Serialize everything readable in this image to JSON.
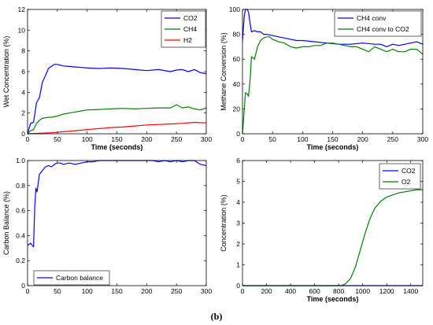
{
  "figure": {
    "caption": "(b)"
  },
  "chart_data": [
    {
      "type": "line",
      "xlabel": "Time (seconds)",
      "ylabel": "Wet Concentration (%)",
      "xlim": [
        0,
        300
      ],
      "ylim": [
        0,
        12
      ],
      "xticks": [
        "0",
        "50",
        "100",
        "150",
        "200",
        "250",
        "300"
      ],
      "yticks": [
        "0",
        "2",
        "4",
        "6",
        "8",
        "10",
        "12"
      ],
      "legend_position": "top-right",
      "series": [
        {
          "name": "CO2",
          "color": "#0000ff",
          "x": [
            0,
            5,
            10,
            15,
            20,
            25,
            30,
            35,
            40,
            45,
            50,
            60,
            70,
            80,
            90,
            100,
            120,
            140,
            160,
            180,
            200,
            220,
            240,
            250,
            260,
            270,
            280,
            290,
            300
          ],
          "y": [
            0,
            1.0,
            1.1,
            3.0,
            3.5,
            5.0,
            5.6,
            6.3,
            6.5,
            6.7,
            6.7,
            6.55,
            6.5,
            6.45,
            6.4,
            6.35,
            6.3,
            6.35,
            6.3,
            6.2,
            6.1,
            6.2,
            6.0,
            6.15,
            6.2,
            6.0,
            6.2,
            5.9,
            5.8
          ]
        },
        {
          "name": "CH4",
          "color": "#008000",
          "x": [
            0,
            5,
            10,
            15,
            20,
            25,
            30,
            40,
            50,
            60,
            70,
            80,
            90,
            100,
            120,
            140,
            160,
            180,
            200,
            220,
            240,
            250,
            260,
            270,
            280,
            290,
            300
          ],
          "y": [
            0,
            0.3,
            0.4,
            1.0,
            1.3,
            1.5,
            1.55,
            1.6,
            1.7,
            1.9,
            2.0,
            2.1,
            2.2,
            2.3,
            2.35,
            2.4,
            2.45,
            2.4,
            2.45,
            2.5,
            2.5,
            2.8,
            2.5,
            2.6,
            2.4,
            2.3,
            2.5
          ]
        },
        {
          "name": "H2",
          "color": "#ff0000",
          "x": [
            0,
            20,
            40,
            60,
            80,
            100,
            120,
            140,
            160,
            180,
            200,
            220,
            240,
            260,
            280,
            300
          ],
          "y": [
            0,
            0.05,
            0.1,
            0.2,
            0.3,
            0.4,
            0.5,
            0.6,
            0.65,
            0.75,
            0.85,
            0.9,
            0.95,
            1.0,
            1.1,
            1.05
          ]
        }
      ]
    },
    {
      "type": "line",
      "xlabel": "Time (seconds)",
      "ylabel": "Methane Conversion (%)",
      "xlim": [
        0,
        300
      ],
      "ylim": [
        0,
        100
      ],
      "xticks": [
        "0",
        "50",
        "100",
        "150",
        "200",
        "250",
        "300"
      ],
      "yticks": [
        "0",
        "20",
        "40",
        "60",
        "80",
        "100"
      ],
      "legend_position": "top-right",
      "series": [
        {
          "name": "CH4 conv",
          "color": "#0000ff",
          "x": [
            0,
            3,
            5,
            8,
            10,
            13,
            15,
            20,
            25,
            30,
            35,
            40,
            50,
            60,
            70,
            80,
            90,
            100,
            120,
            140,
            160,
            180,
            200,
            220,
            230,
            240,
            250,
            260,
            270,
            280,
            290,
            300
          ],
          "y": [
            75,
            95,
            100,
            100,
            98,
            88,
            82,
            83,
            82,
            82,
            80,
            80,
            79,
            78,
            77,
            76,
            75,
            75,
            74,
            73,
            72,
            72,
            73,
            72,
            72,
            70,
            72,
            71,
            72,
            73,
            74,
            72
          ]
        },
        {
          "name": "CH4 conv to CO2",
          "color": "#008000",
          "x": [
            0,
            5,
            8,
            10,
            13,
            15,
            20,
            25,
            30,
            35,
            40,
            45,
            50,
            60,
            70,
            80,
            90,
            100,
            110,
            120,
            130,
            140,
            150,
            160,
            170,
            180,
            190,
            200,
            210,
            220,
            230,
            240,
            250,
            260,
            270,
            280,
            290,
            300
          ],
          "y": [
            0,
            33,
            32,
            30,
            45,
            62,
            60,
            70,
            75,
            77,
            78,
            78,
            76,
            74,
            73,
            70,
            69,
            70,
            70,
            71,
            71,
            73,
            73,
            72,
            71,
            70,
            70,
            68,
            66,
            70,
            68,
            66,
            68,
            66,
            66,
            68,
            68,
            64
          ]
        }
      ]
    },
    {
      "type": "line",
      "xlabel": "",
      "ylabel": "Carbon Balance (%)",
      "xlim": [
        0,
        300
      ],
      "ylim": [
        0,
        1.0
      ],
      "xticks": [
        "0",
        "50",
        "100",
        "150",
        "200",
        "250",
        "300"
      ],
      "yticks": [
        "0",
        "0.2",
        "0.4",
        "0.6",
        "0.8",
        "1.0"
      ],
      "legend_position": "lower-left",
      "series": [
        {
          "name": "Carbon balance",
          "color": "#0000ff",
          "x": [
            0,
            5,
            8,
            10,
            12,
            14,
            16,
            18,
            20,
            25,
            30,
            35,
            40,
            45,
            50,
            55,
            60,
            70,
            80,
            90,
            100,
            110,
            120,
            130,
            140,
            150,
            160,
            170,
            180,
            190,
            200,
            210,
            220,
            230,
            240,
            250,
            260,
            270,
            280,
            290,
            300
          ],
          "y": [
            0.32,
            0.34,
            0.32,
            0.31,
            0.62,
            0.78,
            0.75,
            0.82,
            0.89,
            0.92,
            0.95,
            0.96,
            0.95,
            0.97,
            0.98,
            0.98,
            0.97,
            0.98,
            0.97,
            0.98,
            0.99,
            0.99,
            1.0,
            1.0,
            1.0,
            1.0,
            1.0,
            1.0,
            1.0,
            1.0,
            1.0,
            1.0,
            0.99,
            1.0,
            0.99,
            1.0,
            0.99,
            1.0,
            1.0,
            0.97,
            0.96
          ]
        }
      ]
    },
    {
      "type": "line",
      "xlabel": "Time (seconds)",
      "ylabel": "Concentration (%)",
      "xlim": [
        0,
        1500
      ],
      "ylim": [
        0,
        6
      ],
      "xticks": [
        "0",
        "200",
        "400",
        "600",
        "800",
        "1000",
        "1200",
        "1400"
      ],
      "yticks": [
        "0",
        "1",
        "2",
        "3",
        "4",
        "5",
        "6"
      ],
      "legend_position": "top-right",
      "series": [
        {
          "name": "CO2",
          "color": "#0000ff",
          "x": [
            0,
            1500
          ],
          "y": [
            0,
            0
          ]
        },
        {
          "name": "O2",
          "color": "#008000",
          "x": [
            0,
            820,
            860,
            900,
            940,
            980,
            1020,
            1060,
            1100,
            1150,
            1200,
            1250,
            1300,
            1350,
            1400,
            1450,
            1500
          ],
          "y": [
            0,
            0,
            0.1,
            0.35,
            0.9,
            1.7,
            2.5,
            3.2,
            3.7,
            4.05,
            4.25,
            4.35,
            4.45,
            4.5,
            4.55,
            4.6,
            4.6
          ]
        }
      ]
    }
  ]
}
